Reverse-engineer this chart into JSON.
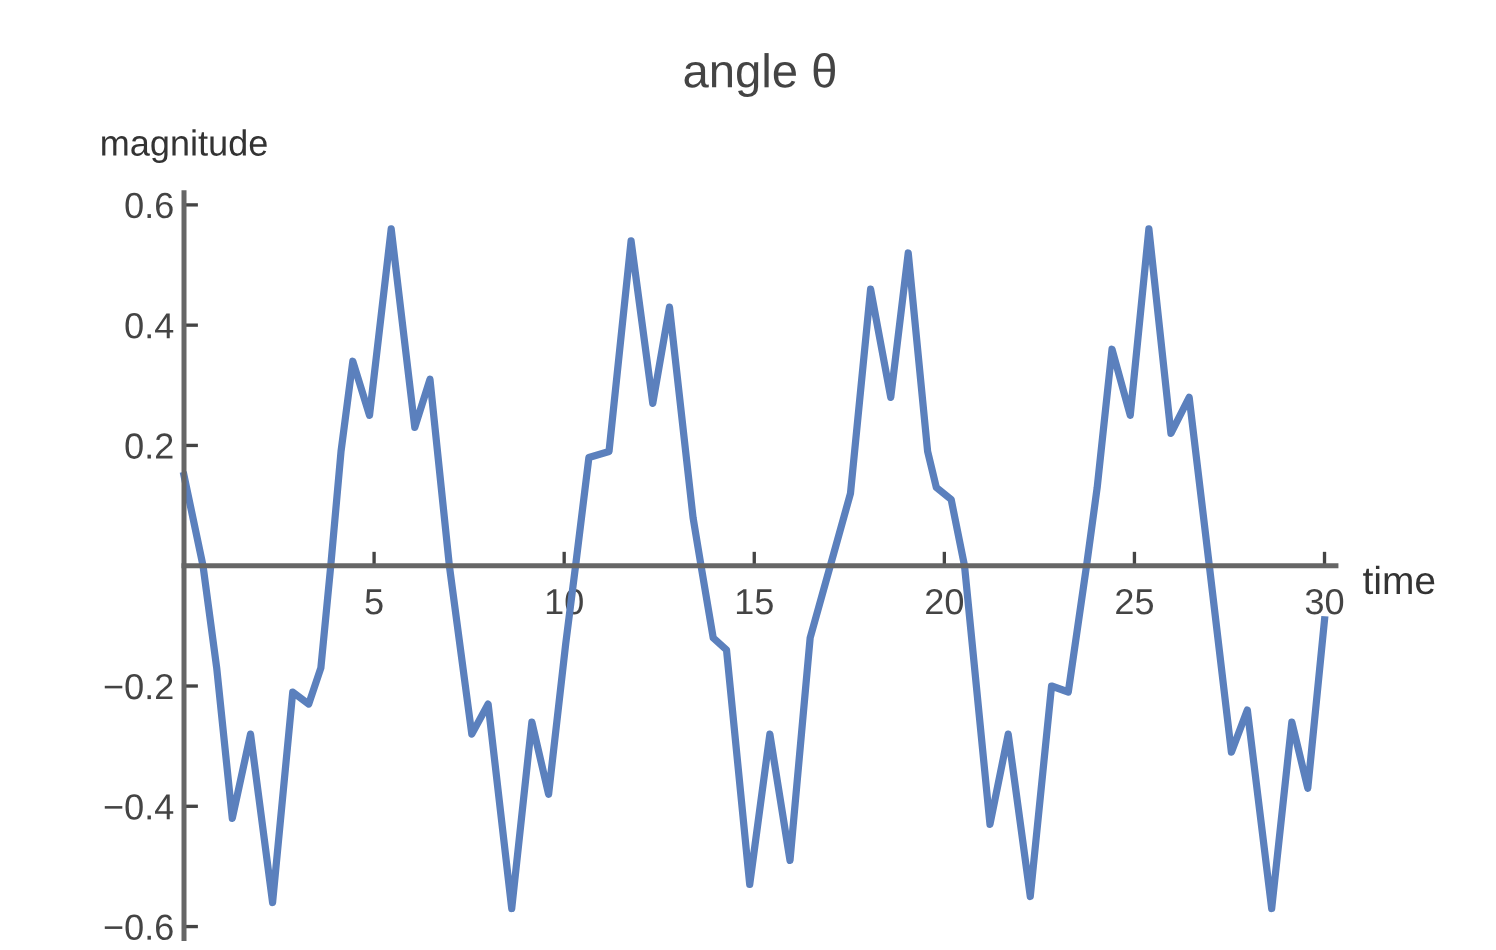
{
  "chart_data": {
    "type": "line",
    "title": "angle θ",
    "xlabel": "time",
    "ylabel": "magnitude",
    "xlim": [
      0,
      30.3
    ],
    "ylim": [
      -0.62,
      0.62
    ],
    "xticks": [
      5,
      10,
      15,
      20,
      25,
      30
    ],
    "yticks": [
      {
        "value": -0.6,
        "label": "−0.6"
      },
      {
        "value": -0.4,
        "label": "−0.4"
      },
      {
        "value": -0.2,
        "label": "−0.2"
      },
      0.2,
      0.4,
      0.6
    ],
    "grid": false,
    "marker": "none",
    "line_style": "solid",
    "series": [
      {
        "color": "#5b80bd",
        "x": [
          0,
          0.5,
          0.86,
          1.27,
          1.75,
          2.33,
          2.86,
          3.28,
          3.6,
          3.86,
          4.13,
          4.44,
          4.88,
          5.45,
          6.07,
          6.47,
          6.98,
          7.57,
          8.0,
          8.62,
          9.15,
          9.59,
          10.04,
          10.3,
          10.65,
          11.18,
          11.76,
          12.33,
          12.77,
          13.39,
          13.6,
          13.92,
          14.27,
          14.88,
          15.41,
          15.94,
          16.47,
          17.0,
          17.53,
          18.06,
          18.59,
          19.05,
          19.56,
          19.79,
          20.18,
          20.53,
          21.2,
          21.68,
          22.26,
          22.82,
          23.26,
          23.74,
          24.02,
          24.41,
          24.89,
          25.38,
          25.96,
          26.44,
          26.97,
          27.55,
          27.97,
          28.61,
          29.14,
          29.56,
          30.0
        ],
        "values": [
          0.15,
          0.0,
          -0.17,
          -0.42,
          -0.28,
          -0.56,
          -0.21,
          -0.23,
          -0.17,
          0.0,
          0.19,
          0.34,
          0.25,
          0.56,
          0.23,
          0.31,
          0.0,
          -0.28,
          -0.23,
          -0.57,
          -0.26,
          -0.38,
          -0.13,
          0.0,
          0.18,
          0.19,
          0.54,
          0.27,
          0.43,
          0.08,
          0.0,
          -0.12,
          -0.14,
          -0.53,
          -0.28,
          -0.49,
          -0.12,
          0.0,
          0.12,
          0.46,
          0.28,
          0.52,
          0.19,
          0.13,
          0.11,
          0.0,
          -0.43,
          -0.28,
          -0.55,
          -0.2,
          -0.21,
          0.0,
          0.13,
          0.36,
          0.25,
          0.56,
          0.22,
          0.28,
          0.0,
          -0.31,
          -0.24,
          -0.57,
          -0.26,
          -0.37,
          -0.09
        ]
      }
    ]
  }
}
